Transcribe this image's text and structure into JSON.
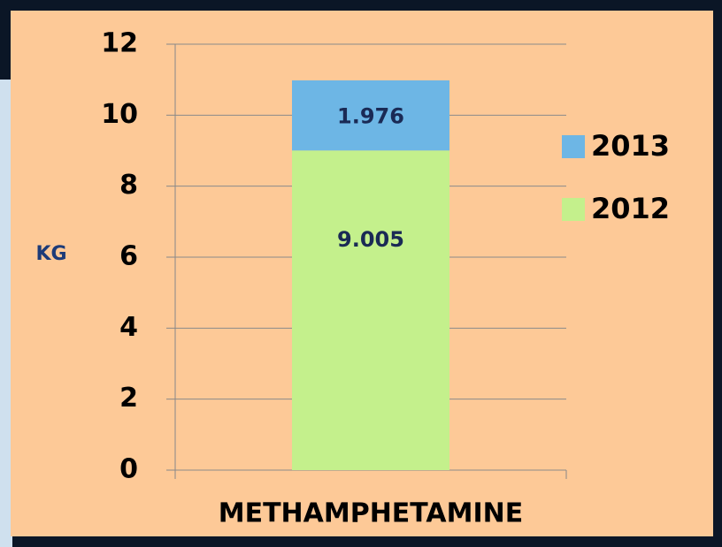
{
  "chart_data": {
    "type": "stacked-bar",
    "y_label": "KG",
    "categories": [
      "METHAMPHETAMINE"
    ],
    "series": [
      {
        "name": "2012",
        "color": "#c4f08c",
        "values": [
          9.005
        ]
      },
      {
        "name": "2013",
        "color": "#6db6e5",
        "values": [
          1.976
        ]
      }
    ],
    "ylim": [
      0,
      12
    ],
    "yticks": [
      0,
      2,
      4,
      6,
      8,
      10,
      12
    ],
    "grid": true
  }
}
